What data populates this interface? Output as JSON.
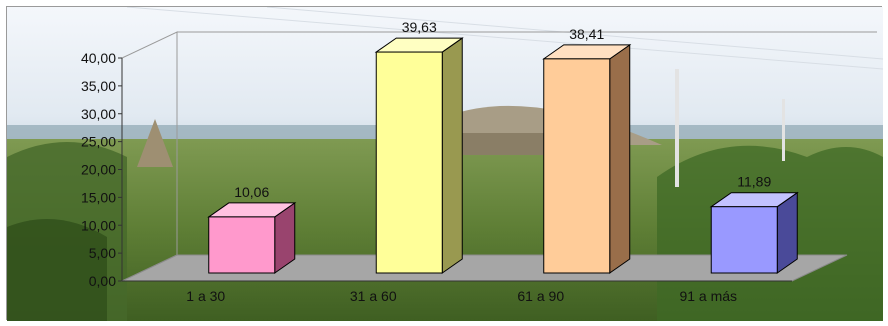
{
  "chart_data": {
    "type": "bar",
    "title": "",
    "xlabel": "",
    "ylabel": "",
    "categories": [
      "1 a 30",
      "31 a 60",
      "61 a 90",
      "91 a más"
    ],
    "values": [
      10.06,
      39.63,
      38.41,
      11.89
    ],
    "value_labels": [
      "10,06",
      "39,63",
      "38,41",
      "11,89"
    ],
    "ylim": [
      0,
      40
    ],
    "yticks": [
      "0,00",
      "5,00",
      "10,00",
      "15,00",
      "20,00",
      "25,00",
      "30,00",
      "35,00",
      "40,00"
    ],
    "grid": false,
    "legend": "none",
    "three_d": true,
    "background": "photo of a rural landscape with thatched huts, fields, and power poles",
    "colors": {
      "front": [
        "#ff99cc",
        "#ffff99",
        "#ffcc99",
        "#9999ff"
      ],
      "side": [
        "#99446e",
        "#999950",
        "#996e4a",
        "#4a4a99"
      ],
      "top": [
        "#ffc2e0",
        "#ffffc2",
        "#ffe0c2",
        "#c2c2ff"
      ],
      "floor": "#a6a6a6",
      "wall": "#9a9a9a"
    }
  }
}
